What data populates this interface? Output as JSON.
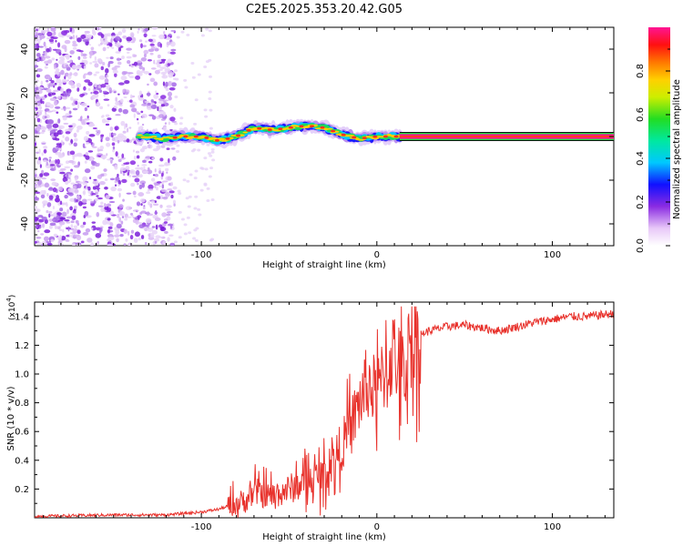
{
  "title": "C2E5.2025.353.20.42.G05",
  "chart_data": [
    {
      "type": "heatmap",
      "name": "spectrogram",
      "xlabel": "Height of straight line (km)",
      "ylabel": "Frequency (Hz)",
      "xlim": [
        -195,
        135
      ],
      "ylim": [
        -50,
        50
      ],
      "xticks": [
        -100,
        0,
        100
      ],
      "yticks": [
        -40,
        -20,
        0,
        20,
        40
      ],
      "colorbar": {
        "label": "Normalized spectral amplitude",
        "range": [
          0,
          1
        ],
        "ticks": [
          0.0,
          0.2,
          0.4,
          0.6,
          0.8
        ],
        "tick_labels": [
          "0.0",
          "0.2",
          "0.4",
          "0.6",
          "0.8"
        ]
      },
      "track": [
        {
          "x": -130,
          "f": 0
        },
        {
          "x": -120,
          "f": -1
        },
        {
          "x": -110,
          "f": 0
        },
        {
          "x": -100,
          "f": 0
        },
        {
          "x": -90,
          "f": -2
        },
        {
          "x": -80,
          "f": 0
        },
        {
          "x": -70,
          "f": 4
        },
        {
          "x": -60,
          "f": 3
        },
        {
          "x": -50,
          "f": 4
        },
        {
          "x": -40,
          "f": 5
        },
        {
          "x": -30,
          "f": 4
        },
        {
          "x": -20,
          "f": 1
        },
        {
          "x": -10,
          "f": -1
        },
        {
          "x": 0,
          "f": 0
        },
        {
          "x": 10,
          "f": 0
        },
        {
          "x": 135,
          "f": 0
        }
      ]
    },
    {
      "type": "line",
      "name": "snr",
      "xlabel": "Height of straight line (km)",
      "ylabel": "SNR (10 * v/v)",
      "y_multiplier": "(x10^4)",
      "y_multiplier_base": "(x10",
      "y_multiplier_exp": "4",
      "xlim": [
        -195,
        135
      ],
      "ylim": [
        0,
        1.5
      ],
      "xticks": [
        -100,
        0,
        100
      ],
      "yticks": [
        0.2,
        0.4,
        0.6,
        0.8,
        1.0,
        1.2,
        1.4
      ],
      "ytick_labels": [
        "0.2",
        "0.4",
        "0.6",
        "0.8",
        "1.0",
        "1.2",
        "1.4"
      ],
      "series": [
        {
          "name": "SNR",
          "color": "#e8322c",
          "x": [
            -195,
            -150,
            -120,
            -100,
            -90,
            -80,
            -75,
            -70,
            -60,
            -50,
            -40,
            -30,
            -20,
            -15,
            -10,
            -5,
            0,
            5,
            10,
            15,
            20,
            25,
            30,
            40,
            50,
            60,
            70,
            80,
            90,
            100,
            110,
            120,
            135
          ],
          "y": [
            0.01,
            0.02,
            0.02,
            0.04,
            0.06,
            0.1,
            0.12,
            0.18,
            0.15,
            0.2,
            0.25,
            0.3,
            0.5,
            0.62,
            0.8,
            0.95,
            0.85,
            1.05,
            1.15,
            1.0,
            1.25,
            1.28,
            1.3,
            1.33,
            1.34,
            1.32,
            1.3,
            1.33,
            1.36,
            1.38,
            1.4,
            1.4,
            1.42
          ]
        }
      ]
    }
  ]
}
